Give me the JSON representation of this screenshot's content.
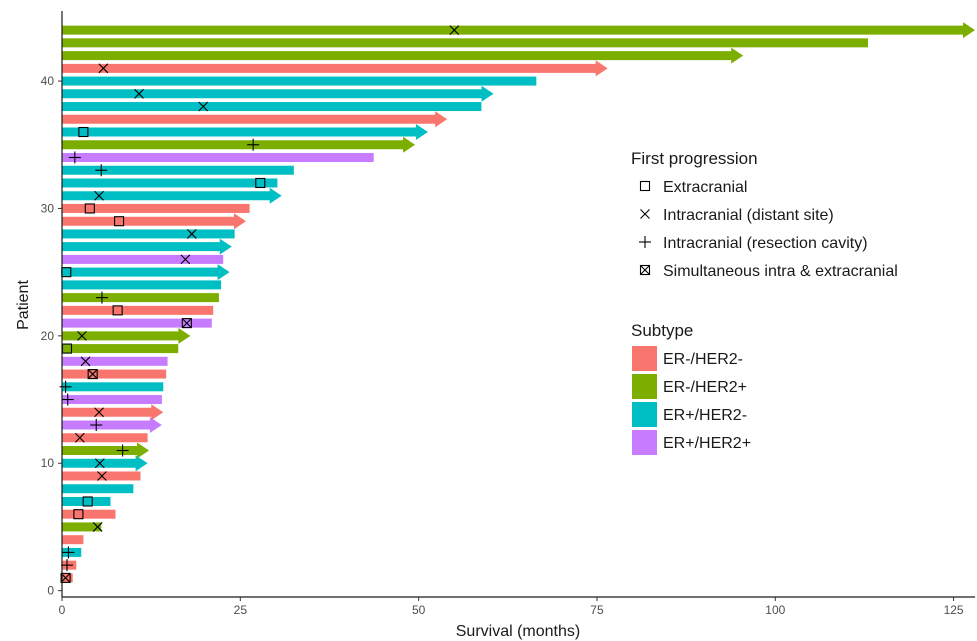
{
  "chart_data": {
    "type": "bar",
    "orientation": "horizontal",
    "xlabel": "Survival (months)",
    "ylabel": "Patient",
    "xlim": [
      0,
      128
    ],
    "ylim": [
      -0.5,
      45.5
    ],
    "x_ticks": [
      0,
      25,
      50,
      75,
      100,
      125
    ],
    "y_ticks": [
      0,
      10,
      20,
      30,
      40
    ],
    "grid": false,
    "subtype_legend": {
      "title": "Subtype",
      "entries": [
        {
          "name": "ER-/HER2-",
          "color": "#F8766D"
        },
        {
          "name": "ER-/HER2+",
          "color": "#7CAE00"
        },
        {
          "name": "ER+/HER2-",
          "color": "#00BFC4"
        },
        {
          "name": "ER+/HER2+",
          "color": "#C77CFF"
        }
      ]
    },
    "progression_legend": {
      "title": "First progression",
      "entries": [
        {
          "name": "Extracranial",
          "symbol": "square"
        },
        {
          "name": "Intracranial (distant site)",
          "symbol": "x"
        },
        {
          "name": "Intracranial (resection cavity)",
          "symbol": "plus"
        },
        {
          "name": "Simultaneous intra & extracranial",
          "symbol": "square-x"
        }
      ]
    },
    "patients": [
      {
        "patient": 1,
        "subtype": "ER-/HER2-",
        "survival": 1.5,
        "ongoing": false,
        "event": "square-x",
        "event_time": 0.5
      },
      {
        "patient": 2,
        "subtype": "ER-/HER2-",
        "survival": 2,
        "ongoing": false,
        "event": "plus",
        "event_time": 0.7
      },
      {
        "patient": 3,
        "subtype": "ER+/HER2-",
        "survival": 2.7,
        "ongoing": false,
        "event": "plus",
        "event_time": 0.9
      },
      {
        "patient": 4,
        "subtype": "ER-/HER2-",
        "survival": 3,
        "ongoing": false,
        "event": null,
        "event_time": null
      },
      {
        "patient": 5,
        "subtype": "ER-/HER2+",
        "survival": 5.5,
        "ongoing": false,
        "event": "x",
        "event_time": 5
      },
      {
        "patient": 6,
        "subtype": "ER-/HER2-",
        "survival": 7.5,
        "ongoing": false,
        "event": "square",
        "event_time": 2.3
      },
      {
        "patient": 7,
        "subtype": "ER+/HER2-",
        "survival": 6.8,
        "ongoing": false,
        "event": "square",
        "event_time": 3.6
      },
      {
        "patient": 8,
        "subtype": "ER+/HER2-",
        "survival": 10,
        "ongoing": false,
        "event": null,
        "event_time": null
      },
      {
        "patient": 9,
        "subtype": "ER-/HER2-",
        "survival": 11,
        "ongoing": false,
        "event": "x",
        "event_time": 5.6
      },
      {
        "patient": 10,
        "subtype": "ER+/HER2-",
        "survival": 12,
        "ongoing": true,
        "event": "x",
        "event_time": 5.3
      },
      {
        "patient": 11,
        "subtype": "ER-/HER2+",
        "survival": 12.2,
        "ongoing": true,
        "event": "plus",
        "event_time": 8.5
      },
      {
        "patient": 12,
        "subtype": "ER-/HER2-",
        "survival": 12,
        "ongoing": false,
        "event": "x",
        "event_time": 2.5
      },
      {
        "patient": 13,
        "subtype": "ER+/HER2+",
        "survival": 14,
        "ongoing": true,
        "event": "plus",
        "event_time": 4.8
      },
      {
        "patient": 14,
        "subtype": "ER-/HER2-",
        "survival": 14.2,
        "ongoing": true,
        "event": "x",
        "event_time": 5.2
      },
      {
        "patient": 15,
        "subtype": "ER+/HER2+",
        "survival": 14,
        "ongoing": false,
        "event": "plus",
        "event_time": 0.8
      },
      {
        "patient": 16,
        "subtype": "ER+/HER2-",
        "survival": 14.2,
        "ongoing": false,
        "event": "plus",
        "event_time": 0.5
      },
      {
        "patient": 17,
        "subtype": "ER-/HER2-",
        "survival": 14.6,
        "ongoing": false,
        "event": "square-x",
        "event_time": 4.3
      },
      {
        "patient": 18,
        "subtype": "ER+/HER2+",
        "survival": 14.8,
        "ongoing": false,
        "event": "x",
        "event_time": 3.3
      },
      {
        "patient": 19,
        "subtype": "ER-/HER2+",
        "survival": 16.3,
        "ongoing": false,
        "event": "square",
        "event_time": 0.7
      },
      {
        "patient": 20,
        "subtype": "ER-/HER2+",
        "survival": 18,
        "ongoing": true,
        "event": "x",
        "event_time": 2.8
      },
      {
        "patient": 21,
        "subtype": "ER+/HER2+",
        "survival": 21,
        "ongoing": false,
        "event": "square-x",
        "event_time": 17.5
      },
      {
        "patient": 22,
        "subtype": "ER-/HER2-",
        "survival": 21.2,
        "ongoing": false,
        "event": "square",
        "event_time": 7.8
      },
      {
        "patient": 23,
        "subtype": "ER-/HER2+",
        "survival": 22,
        "ongoing": false,
        "event": "plus",
        "event_time": 5.6
      },
      {
        "patient": 24,
        "subtype": "ER+/HER2-",
        "survival": 22.3,
        "ongoing": false,
        "event": null,
        "event_time": null
      },
      {
        "patient": 25,
        "subtype": "ER+/HER2-",
        "survival": 23.5,
        "ongoing": true,
        "event": "square",
        "event_time": 0.6
      },
      {
        "patient": 26,
        "subtype": "ER+/HER2+",
        "survival": 22.6,
        "ongoing": false,
        "event": "x",
        "event_time": 17.3
      },
      {
        "patient": 27,
        "subtype": "ER+/HER2-",
        "survival": 23.8,
        "ongoing": true,
        "event": null,
        "event_time": null
      },
      {
        "patient": 28,
        "subtype": "ER+/HER2-",
        "survival": 24.2,
        "ongoing": false,
        "event": "x",
        "event_time": 18.2
      },
      {
        "patient": 29,
        "subtype": "ER-/HER2-",
        "survival": 25.8,
        "ongoing": true,
        "event": "square",
        "event_time": 8
      },
      {
        "patient": 30,
        "subtype": "ER-/HER2-",
        "survival": 26.3,
        "ongoing": false,
        "event": "square",
        "event_time": 3.9
      },
      {
        "patient": 31,
        "subtype": "ER+/HER2-",
        "survival": 30.8,
        "ongoing": true,
        "event": "x",
        "event_time": 5.2
      },
      {
        "patient": 32,
        "subtype": "ER+/HER2-",
        "survival": 30.2,
        "ongoing": false,
        "event": "square",
        "event_time": 27.8
      },
      {
        "patient": 33,
        "subtype": "ER+/HER2-",
        "survival": 32.5,
        "ongoing": false,
        "event": "plus",
        "event_time": 5.5
      },
      {
        "patient": 34,
        "subtype": "ER+/HER2+",
        "survival": 43.7,
        "ongoing": false,
        "event": "plus",
        "event_time": 1.8
      },
      {
        "patient": 35,
        "subtype": "ER-/HER2+",
        "survival": 49.5,
        "ongoing": true,
        "event": "plus",
        "event_time": 26.8
      },
      {
        "patient": 36,
        "subtype": "ER+/HER2-",
        "survival": 51.3,
        "ongoing": true,
        "event": "square",
        "event_time": 3
      },
      {
        "patient": 37,
        "subtype": "ER-/HER2-",
        "survival": 54,
        "ongoing": true,
        "event": null,
        "event_time": null
      },
      {
        "patient": 38,
        "subtype": "ER+/HER2-",
        "survival": 58.8,
        "ongoing": false,
        "event": "x",
        "event_time": 19.8
      },
      {
        "patient": 39,
        "subtype": "ER+/HER2-",
        "survival": 60.5,
        "ongoing": true,
        "event": "x",
        "event_time": 10.8
      },
      {
        "patient": 40,
        "subtype": "ER+/HER2-",
        "survival": 66.5,
        "ongoing": false,
        "event": null,
        "event_time": null
      },
      {
        "patient": 41,
        "subtype": "ER-/HER2-",
        "survival": 76.5,
        "ongoing": true,
        "event": "x",
        "event_time": 5.8
      },
      {
        "patient": 42,
        "subtype": "ER-/HER2+",
        "survival": 95.5,
        "ongoing": true,
        "event": null,
        "event_time": null
      },
      {
        "patient": 43,
        "subtype": "ER-/HER2+",
        "survival": 113,
        "ongoing": false,
        "event": null,
        "event_time": null
      },
      {
        "patient": 44,
        "subtype": "ER-/HER2+",
        "survival": 128,
        "ongoing": true,
        "event": "x",
        "event_time": 55
      }
    ]
  }
}
